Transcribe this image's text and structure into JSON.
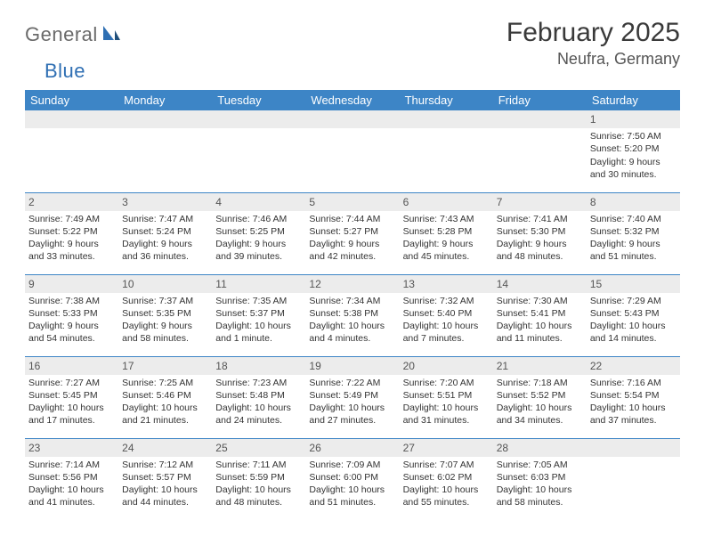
{
  "logo": {
    "text1": "General",
    "text2": "Blue"
  },
  "title": "February 2025",
  "location": "Neufra, Germany",
  "colors": {
    "header_bg": "#3d85c6",
    "header_fg": "#ffffff",
    "daynum_bg": "#ececec",
    "rule": "#3d85c6",
    "logo_gray": "#6a6a6a",
    "logo_blue": "#2f6fb3"
  },
  "weekdays": [
    "Sunday",
    "Monday",
    "Tuesday",
    "Wednesday",
    "Thursday",
    "Friday",
    "Saturday"
  ],
  "weeks": [
    [
      {
        "day": "",
        "lines": []
      },
      {
        "day": "",
        "lines": []
      },
      {
        "day": "",
        "lines": []
      },
      {
        "day": "",
        "lines": []
      },
      {
        "day": "",
        "lines": []
      },
      {
        "day": "",
        "lines": []
      },
      {
        "day": "1",
        "lines": [
          "Sunrise: 7:50 AM",
          "Sunset: 5:20 PM",
          "Daylight: 9 hours and 30 minutes."
        ]
      }
    ],
    [
      {
        "day": "2",
        "lines": [
          "Sunrise: 7:49 AM",
          "Sunset: 5:22 PM",
          "Daylight: 9 hours and 33 minutes."
        ]
      },
      {
        "day": "3",
        "lines": [
          "Sunrise: 7:47 AM",
          "Sunset: 5:24 PM",
          "Daylight: 9 hours and 36 minutes."
        ]
      },
      {
        "day": "4",
        "lines": [
          "Sunrise: 7:46 AM",
          "Sunset: 5:25 PM",
          "Daylight: 9 hours and 39 minutes."
        ]
      },
      {
        "day": "5",
        "lines": [
          "Sunrise: 7:44 AM",
          "Sunset: 5:27 PM",
          "Daylight: 9 hours and 42 minutes."
        ]
      },
      {
        "day": "6",
        "lines": [
          "Sunrise: 7:43 AM",
          "Sunset: 5:28 PM",
          "Daylight: 9 hours and 45 minutes."
        ]
      },
      {
        "day": "7",
        "lines": [
          "Sunrise: 7:41 AM",
          "Sunset: 5:30 PM",
          "Daylight: 9 hours and 48 minutes."
        ]
      },
      {
        "day": "8",
        "lines": [
          "Sunrise: 7:40 AM",
          "Sunset: 5:32 PM",
          "Daylight: 9 hours and 51 minutes."
        ]
      }
    ],
    [
      {
        "day": "9",
        "lines": [
          "Sunrise: 7:38 AM",
          "Sunset: 5:33 PM",
          "Daylight: 9 hours and 54 minutes."
        ]
      },
      {
        "day": "10",
        "lines": [
          "Sunrise: 7:37 AM",
          "Sunset: 5:35 PM",
          "Daylight: 9 hours and 58 minutes."
        ]
      },
      {
        "day": "11",
        "lines": [
          "Sunrise: 7:35 AM",
          "Sunset: 5:37 PM",
          "Daylight: 10 hours and 1 minute."
        ]
      },
      {
        "day": "12",
        "lines": [
          "Sunrise: 7:34 AM",
          "Sunset: 5:38 PM",
          "Daylight: 10 hours and 4 minutes."
        ]
      },
      {
        "day": "13",
        "lines": [
          "Sunrise: 7:32 AM",
          "Sunset: 5:40 PM",
          "Daylight: 10 hours and 7 minutes."
        ]
      },
      {
        "day": "14",
        "lines": [
          "Sunrise: 7:30 AM",
          "Sunset: 5:41 PM",
          "Daylight: 10 hours and 11 minutes."
        ]
      },
      {
        "day": "15",
        "lines": [
          "Sunrise: 7:29 AM",
          "Sunset: 5:43 PM",
          "Daylight: 10 hours and 14 minutes."
        ]
      }
    ],
    [
      {
        "day": "16",
        "lines": [
          "Sunrise: 7:27 AM",
          "Sunset: 5:45 PM",
          "Daylight: 10 hours and 17 minutes."
        ]
      },
      {
        "day": "17",
        "lines": [
          "Sunrise: 7:25 AM",
          "Sunset: 5:46 PM",
          "Daylight: 10 hours and 21 minutes."
        ]
      },
      {
        "day": "18",
        "lines": [
          "Sunrise: 7:23 AM",
          "Sunset: 5:48 PM",
          "Daylight: 10 hours and 24 minutes."
        ]
      },
      {
        "day": "19",
        "lines": [
          "Sunrise: 7:22 AM",
          "Sunset: 5:49 PM",
          "Daylight: 10 hours and 27 minutes."
        ]
      },
      {
        "day": "20",
        "lines": [
          "Sunrise: 7:20 AM",
          "Sunset: 5:51 PM",
          "Daylight: 10 hours and 31 minutes."
        ]
      },
      {
        "day": "21",
        "lines": [
          "Sunrise: 7:18 AM",
          "Sunset: 5:52 PM",
          "Daylight: 10 hours and 34 minutes."
        ]
      },
      {
        "day": "22",
        "lines": [
          "Sunrise: 7:16 AM",
          "Sunset: 5:54 PM",
          "Daylight: 10 hours and 37 minutes."
        ]
      }
    ],
    [
      {
        "day": "23",
        "lines": [
          "Sunrise: 7:14 AM",
          "Sunset: 5:56 PM",
          "Daylight: 10 hours and 41 minutes."
        ]
      },
      {
        "day": "24",
        "lines": [
          "Sunrise: 7:12 AM",
          "Sunset: 5:57 PM",
          "Daylight: 10 hours and 44 minutes."
        ]
      },
      {
        "day": "25",
        "lines": [
          "Sunrise: 7:11 AM",
          "Sunset: 5:59 PM",
          "Daylight: 10 hours and 48 minutes."
        ]
      },
      {
        "day": "26",
        "lines": [
          "Sunrise: 7:09 AM",
          "Sunset: 6:00 PM",
          "Daylight: 10 hours and 51 minutes."
        ]
      },
      {
        "day": "27",
        "lines": [
          "Sunrise: 7:07 AM",
          "Sunset: 6:02 PM",
          "Daylight: 10 hours and 55 minutes."
        ]
      },
      {
        "day": "28",
        "lines": [
          "Sunrise: 7:05 AM",
          "Sunset: 6:03 PM",
          "Daylight: 10 hours and 58 minutes."
        ]
      },
      {
        "day": "",
        "lines": []
      }
    ]
  ]
}
